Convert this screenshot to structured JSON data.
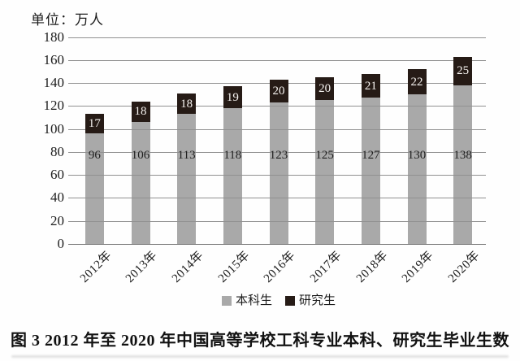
{
  "unit_label": "单位：万人",
  "caption": "图 3  2012 年至 2020 年中国高等学校工科专业本科、研究生毕业生数",
  "chart_data": {
    "type": "bar",
    "stacked": true,
    "title": "",
    "xlabel": "",
    "ylabel": "单位：万人",
    "categories": [
      "2012年",
      "2013年",
      "2014年",
      "2015年",
      "2016年",
      "2017年",
      "2018年",
      "2019年",
      "2020年"
    ],
    "series": [
      {
        "key": "undergraduate",
        "name": "本科生",
        "color": "#a9a9a9",
        "values": [
          96,
          106,
          113,
          118,
          123,
          125,
          127,
          130,
          138
        ]
      },
      {
        "key": "graduate",
        "name": "研究生",
        "color": "#261b16",
        "values": [
          17,
          18,
          18,
          19,
          20,
          20,
          21,
          22,
          25
        ]
      }
    ],
    "totals": [
      113,
      124,
      131,
      137,
      143,
      145,
      148,
      152,
      163
    ],
    "ylim": [
      0,
      180
    ],
    "ytick_step": 20,
    "grid": true,
    "value_labels": true,
    "legend_position": "bottom"
  },
  "legend": {
    "items": [
      {
        "key": "undergraduate",
        "label": "本科生",
        "color": "#a9a9a9"
      },
      {
        "key": "graduate",
        "label": "研究生",
        "color": "#261b16"
      }
    ]
  },
  "colors": {
    "background": "#fefefe",
    "gridline": "#919191",
    "axis": "#6f6f6f",
    "text": "#1c1c1c",
    "bar_gray": "#a9a9a9",
    "bar_black": "#261b16",
    "bar_black_label": "#f7f4f1"
  }
}
